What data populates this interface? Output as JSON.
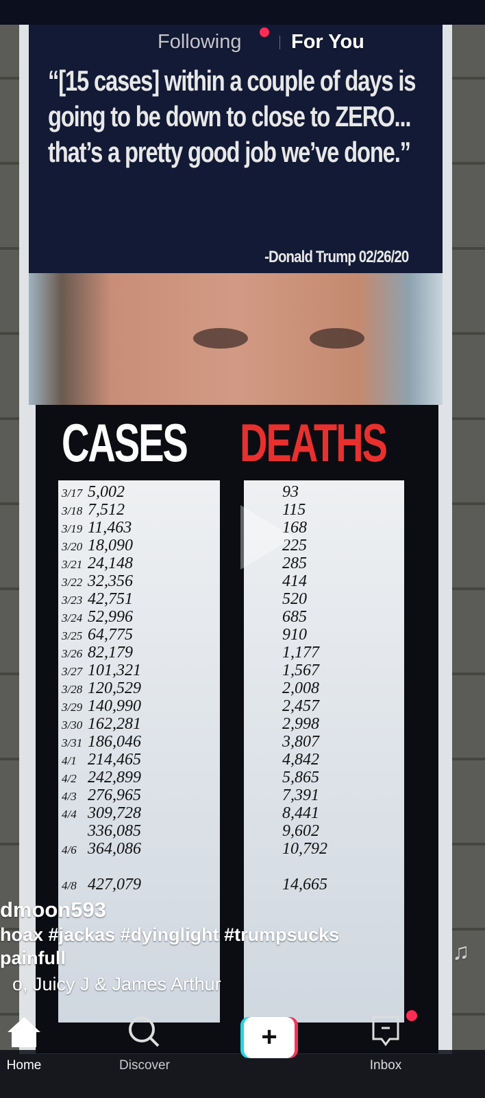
{
  "top_tabs": {
    "following": "Following",
    "for_you": "For You",
    "accent": "#fe2c55"
  },
  "poster": {
    "quote": "“[15 cases] within a couple of days is going to be down to close to ZERO... that’s a pretty good job we’ve done.”",
    "attribution": "-Donald Trump 02/26/20",
    "cases_header": "CASES",
    "deaths_header": "DEATHS",
    "deaths_color": "#e8302e",
    "cases": [
      {
        "date": "3/17",
        "value": "5,002"
      },
      {
        "date": "3/18",
        "value": "7,512"
      },
      {
        "date": "3/19",
        "value": "11,463"
      },
      {
        "date": "3/20",
        "value": "18,090"
      },
      {
        "date": "3/21",
        "value": "24,148"
      },
      {
        "date": "3/22",
        "value": "32,356"
      },
      {
        "date": "3/23",
        "value": "42,751"
      },
      {
        "date": "3/24",
        "value": "52,996"
      },
      {
        "date": "3/25",
        "value": "64,775"
      },
      {
        "date": "3/26",
        "value": "82,179"
      },
      {
        "date": "3/27",
        "value": "101,321"
      },
      {
        "date": "3/28",
        "value": "120,529"
      },
      {
        "date": "3/29",
        "value": "140,990"
      },
      {
        "date": "3/30",
        "value": "162,281"
      },
      {
        "date": "3/31",
        "value": "186,046"
      },
      {
        "date": "4/1",
        "value": "214,465"
      },
      {
        "date": "4/2",
        "value": "242,899"
      },
      {
        "date": "4/3",
        "value": "276,965"
      },
      {
        "date": "4/4",
        "value": "309,728"
      },
      {
        "date": "",
        "value": "336,085"
      },
      {
        "date": "4/6",
        "value": "364,086"
      },
      {
        "date": "",
        "value": ""
      },
      {
        "date": "4/8",
        "value": "427,079"
      }
    ],
    "deaths": [
      "93",
      "115",
      "168",
      "225",
      "285",
      "414",
      "520",
      "685",
      "910",
      "1,177",
      "1,567",
      "2,008",
      "2,457",
      "2,998",
      "3,807",
      "4,842",
      "5,865",
      "7,391",
      "8,441",
      "9,602",
      "10,792",
      "",
      "14,665"
    ]
  },
  "video": {
    "username": "dmoon593",
    "caption_line1": "hoax #jackas #dyinglight #trumpsucks",
    "caption_line2": "painfull",
    "music": "o, Juicy J & James Arthur"
  },
  "nav": {
    "home": "Home",
    "discover": "Discover",
    "inbox": "Inbox"
  }
}
